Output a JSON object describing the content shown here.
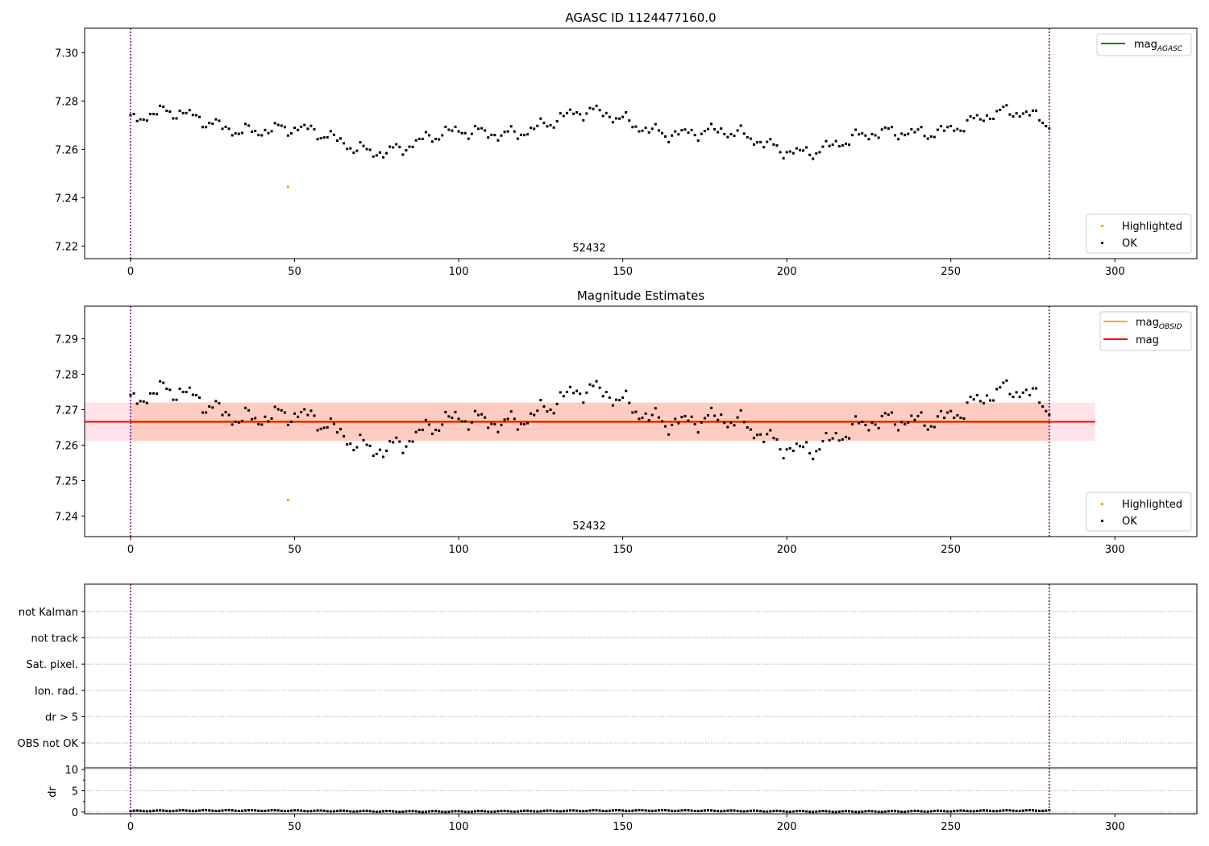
{
  "figure": {
    "obsid_label": "52432"
  },
  "colors": {
    "ok": "#000000",
    "highlighted": "#ffa500",
    "mag_agasc": "#008000",
    "mag_obsid": "#ffa500",
    "mag": "#ff0000",
    "band_mag": "#ffc0cb",
    "band_obsid": "#ffa07a",
    "obs_bounds": "#800080",
    "grid": "#b0b0b0"
  },
  "chart_data": [
    {
      "type": "scatter",
      "title": "AGASC ID 1124477160.0",
      "xlim": [
        -14,
        325
      ],
      "ylim": [
        7.2148,
        7.3101
      ],
      "yticks": [
        "7.22",
        "7.24",
        "7.26",
        "7.28",
        "7.30"
      ],
      "xticks": [
        "0",
        "50",
        "100",
        "150",
        "200",
        "250",
        "300"
      ],
      "obs_bounds": [
        0,
        280
      ],
      "highlighted": {
        "x": 48,
        "y": 7.2445
      },
      "lines": [
        {
          "label": "mag",
          "subscript": "AGASC"
        }
      ],
      "legend": [
        {
          "label": "Highlighted"
        },
        {
          "label": "OK"
        }
      ]
    },
    {
      "type": "scatter",
      "title": "Magnitude Estimates",
      "xlim": [
        -14,
        325
      ],
      "ylim": [
        7.2342,
        7.2992
      ],
      "yticks": [
        "7.24",
        "7.25",
        "7.26",
        "7.27",
        "7.28",
        "7.29"
      ],
      "xticks": [
        "0",
        "50",
        "100",
        "150",
        "200",
        "250",
        "300"
      ],
      "obs_bounds": [
        0,
        280
      ],
      "mag": 7.2666,
      "mag_band": [
        7.2612,
        7.272
      ],
      "obsid_band": [
        7.2612,
        7.272
      ],
      "band_x": [
        -14,
        294
      ],
      "obsid_x": [
        0,
        280
      ],
      "highlighted": {
        "x": 48,
        "y": 7.2445
      },
      "lines": [
        {
          "label": "mag",
          "subscript": "OBSID"
        },
        {
          "label": "mag",
          "subscript": ""
        }
      ],
      "legend": [
        {
          "label": "Highlighted"
        },
        {
          "label": "OK"
        }
      ]
    },
    {
      "type": "flags",
      "xlim": [
        -14,
        325
      ],
      "obs_bounds": [
        0,
        280
      ],
      "categories": [
        "not Kalman",
        "not track",
        "Sat. pixel.",
        "Ion. rad.",
        "dr > 5",
        "OBS not OK"
      ]
    },
    {
      "type": "scatter",
      "ylabel": "dr",
      "xlim": [
        -14,
        325
      ],
      "ylim": [
        -0.4,
        10.4
      ],
      "yticks": [
        "0",
        "5",
        "10"
      ],
      "xticks": [
        "0",
        "50",
        "100",
        "150",
        "200",
        "250",
        "300"
      ],
      "obs_bounds": [
        0,
        280
      ]
    }
  ]
}
